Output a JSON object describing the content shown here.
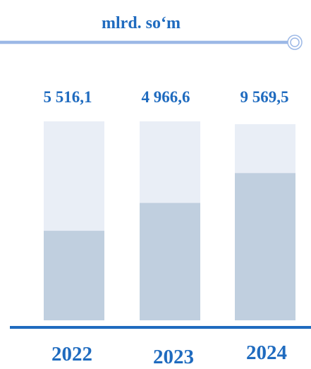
{
  "colors": {
    "accent": "#1f6bbf",
    "header_line": "#9cb8e6",
    "bar_background": "#e9eef6",
    "bar_fill": "#c0cfdf",
    "baseline": "#1f6bbf"
  },
  "chart_data": {
    "type": "bar",
    "unit_label": "mlrd. so‘m",
    "categories": [
      "2022",
      "2023",
      "2024"
    ],
    "value_labels": [
      "5 516,1",
      "4 966,6",
      "9 569,5"
    ],
    "values": [
      5516.1,
      4966.6,
      9569.5
    ],
    "fill_fractions": [
      0.45,
      0.59,
      0.74
    ],
    "grid": false,
    "legend": "none"
  }
}
